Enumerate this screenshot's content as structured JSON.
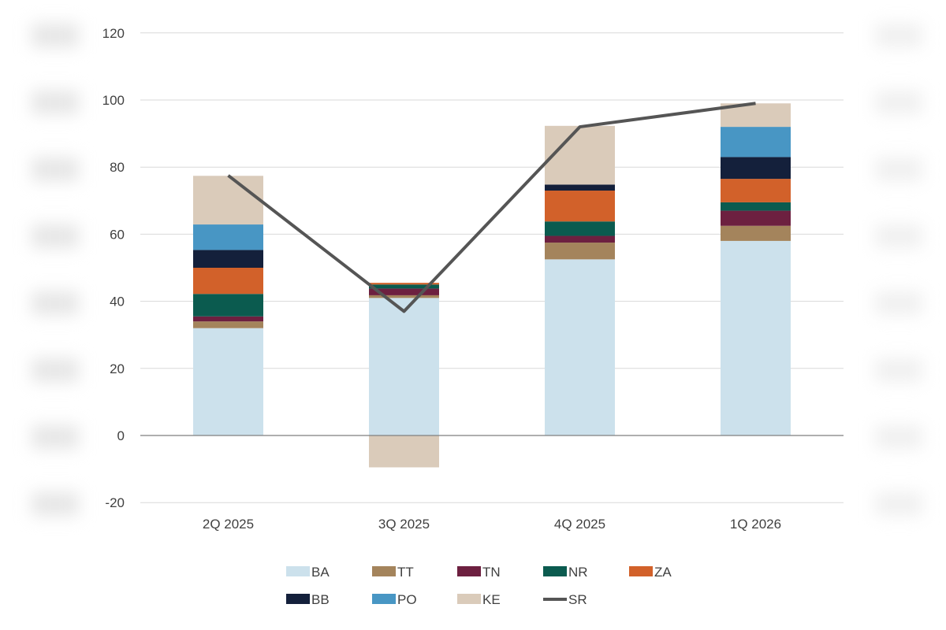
{
  "chart_data": {
    "type": "bar",
    "stacked": true,
    "categories": [
      "2Q 2025",
      "3Q 2025",
      "4Q 2025",
      "1Q 2026"
    ],
    "series": [
      {
        "name": "BA",
        "color": "#cce1ec",
        "values": [
          32,
          41,
          52.5,
          58
        ]
      },
      {
        "name": "TT",
        "color": "#a4845c",
        "values": [
          2,
          0.8,
          5,
          4.5
        ]
      },
      {
        "name": "TN",
        "color": "#6d2040",
        "values": [
          1.5,
          2,
          2,
          4.5
        ]
      },
      {
        "name": "NR",
        "color": "#0b5b4f",
        "values": [
          6.7,
          1.2,
          4.3,
          2.5
        ]
      },
      {
        "name": "ZA",
        "color": "#d2612a",
        "values": [
          7.8,
          0.5,
          9.2,
          7
        ]
      },
      {
        "name": "BB",
        "color": "#14203b",
        "values": [
          5.3,
          0,
          1.8,
          6.5
        ]
      },
      {
        "name": "PO",
        "color": "#4896c4",
        "values": [
          7.6,
          0,
          0,
          9
        ]
      },
      {
        "name": "KE",
        "color": "#dacbba",
        "values": [
          14.5,
          -9.5,
          17.5,
          7
        ]
      }
    ],
    "line_series": {
      "name": "SR",
      "color": "#555555",
      "values": [
        77.5,
        37,
        92,
        99
      ]
    },
    "ylim": [
      -20,
      120
    ],
    "yticks": [
      "-20",
      "0",
      "20",
      "40",
      "60",
      "80",
      "100",
      "120"
    ],
    "grid": true,
    "legend_position": "bottom",
    "title": "",
    "xlabel": "",
    "ylabel": ""
  }
}
